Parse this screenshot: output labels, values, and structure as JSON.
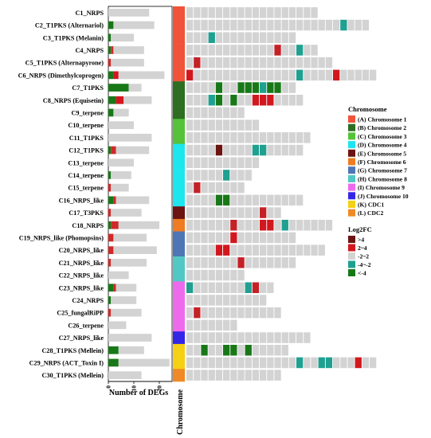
{
  "chart_data": {
    "type": "heatmap",
    "clusters": [
      {
        "label": "C1_NRPS",
        "chromosome": "A",
        "bar": {
          "up": 0,
          "up_mid": 0,
          "neutral": 16,
          "down_mid": 0,
          "down": 0
        },
        "cells": [
          0,
          0,
          0,
          0,
          0,
          0,
          0,
          0,
          0,
          0,
          0,
          0,
          0,
          0,
          0,
          0,
          0,
          0
        ]
      },
      {
        "label": "C2_T1PKS (Alternariol)",
        "chromosome": "A",
        "bar": {
          "up": 0,
          "up_mid": 0,
          "neutral": 16,
          "down_mid": 0,
          "down": 2
        },
        "cells": [
          0,
          0,
          0,
          0,
          0,
          0,
          0,
          0,
          0,
          0,
          0,
          0,
          0,
          0,
          0,
          0,
          0,
          0,
          0,
          0,
          0,
          -1,
          0,
          0,
          0
        ]
      },
      {
        "label": "C3_T1PKS (Melanin)",
        "chromosome": "A",
        "bar": {
          "up": 0,
          "up_mid": 0,
          "neutral": 9,
          "down_mid": 0,
          "down": 1
        },
        "cells": [
          0,
          0,
          0,
          -1,
          0,
          0,
          0,
          0,
          0,
          0,
          0,
          0,
          0,
          0,
          0
        ]
      },
      {
        "label": "C4_NRPS",
        "chromosome": "A",
        "bar": {
          "up": 0,
          "up_mid": 1,
          "neutral": 12,
          "down_mid": 0,
          "down": 1
        },
        "cells": [
          0,
          0,
          0,
          0,
          0,
          0,
          0,
          0,
          0,
          0,
          0,
          0,
          1,
          0,
          0,
          -1,
          0,
          0
        ]
      },
      {
        "label": "C5_T1PKS (Alternapyrone)",
        "chromosome": "A",
        "bar": {
          "up": 0,
          "up_mid": 1,
          "neutral": 13,
          "down_mid": 0,
          "down": 0
        },
        "cells": [
          0,
          1,
          0,
          0,
          0,
          0,
          0,
          0,
          0,
          0,
          0,
          0,
          0,
          0,
          0,
          0,
          0,
          0,
          0,
          0
        ]
      },
      {
        "label": "C6_NRPS (Dimethylcoprogen)",
        "chromosome": "A",
        "bar": {
          "up": 2,
          "up_mid": 0,
          "neutral": 18,
          "down_mid": 0,
          "down": 2
        },
        "cells": [
          2,
          0,
          0,
          0,
          0,
          0,
          0,
          0,
          0,
          0,
          0,
          0,
          0,
          0,
          0,
          -1,
          0,
          0,
          0,
          0,
          2,
          0,
          0,
          0,
          0,
          0
        ]
      },
      {
        "label": "C7_T1PKS",
        "chromosome": "B",
        "bar": {
          "up": 0,
          "up_mid": 0,
          "neutral": 5,
          "down_mid": 0,
          "down": 8
        },
        "cells": [
          0,
          0,
          0,
          0,
          -2,
          0,
          0,
          -2,
          -2,
          -2,
          -1,
          -2,
          -2,
          0,
          0
        ]
      },
      {
        "label": "C8_NRPS (Equisetin)",
        "chromosome": "B",
        "bar": {
          "up": 3,
          "up_mid": 0,
          "neutral": 11,
          "down_mid": 0,
          "down": 3
        },
        "cells": [
          0,
          0,
          0,
          -1,
          -2,
          0,
          -2,
          0,
          0,
          2,
          2,
          2,
          0,
          0,
          0,
          0
        ]
      },
      {
        "label": "C9_terpene",
        "chromosome": "B",
        "bar": {
          "up": 0,
          "up_mid": 0,
          "neutral": 6,
          "down_mid": 0,
          "down": 2
        },
        "cells": [
          0,
          0,
          0,
          0,
          0,
          0,
          0,
          0
        ]
      },
      {
        "label": "C10_terpene",
        "chromosome": "C",
        "bar": {
          "up": 0,
          "up_mid": 0,
          "neutral": 10,
          "down_mid": 0,
          "down": 0
        },
        "cells": [
          0,
          0,
          0,
          0,
          0,
          0,
          0,
          0,
          0,
          0
        ]
      },
      {
        "label": "C11_T1PKS",
        "chromosome": "C",
        "bar": {
          "up": 0,
          "up_mid": 0,
          "neutral": 17,
          "down_mid": 0,
          "down": 0
        },
        "cells": [
          0,
          0,
          0,
          0,
          0,
          0,
          0,
          0,
          0,
          0,
          0,
          0,
          0,
          0,
          0,
          0,
          0
        ]
      },
      {
        "label": "C12_T1PKS",
        "chromosome": "D",
        "bar": {
          "up": 0,
          "up_mid": 2,
          "neutral": 13,
          "down_mid": 0,
          "down": 1
        },
        "cells": [
          0,
          0,
          0,
          0,
          3,
          0,
          0,
          0,
          0,
          -1,
          -1,
          0,
          0,
          0,
          0,
          0
        ]
      },
      {
        "label": "C13_terpene",
        "chromosome": "D",
        "bar": {
          "up": 0,
          "up_mid": 0,
          "neutral": 10,
          "down_mid": 0,
          "down": 0
        },
        "cells": [
          0,
          0,
          0,
          0,
          0,
          0,
          0,
          0,
          0,
          0
        ]
      },
      {
        "label": "C14_terpene",
        "chromosome": "D",
        "bar": {
          "up": 0,
          "up_mid": 0,
          "neutral": 8,
          "down_mid": 0,
          "down": 1
        },
        "cells": [
          0,
          0,
          0,
          0,
          0,
          -1,
          0,
          0,
          0
        ]
      },
      {
        "label": "C15_terpene",
        "chromosome": "D",
        "bar": {
          "up": 0,
          "up_mid": 1,
          "neutral": 7,
          "down_mid": 0,
          "down": 0
        },
        "cells": [
          0,
          1,
          0,
          0,
          0,
          0,
          0,
          0
        ]
      },
      {
        "label": "C16_NRPS_like",
        "chromosome": "D",
        "bar": {
          "up": 0,
          "up_mid": 1,
          "neutral": 13,
          "down_mid": 0,
          "down": 2
        },
        "cells": [
          0,
          0,
          0,
          0,
          -2,
          -2,
          0,
          0,
          0,
          0,
          0,
          0,
          0,
          0,
          0,
          0
        ]
      },
      {
        "label": "C17_T3PKS",
        "chromosome": "E",
        "bar": {
          "up": 0,
          "up_mid": 1,
          "neutral": 12,
          "down_mid": 0,
          "down": 0
        },
        "cells": [
          0,
          0,
          0,
          0,
          0,
          0,
          0,
          0,
          0,
          0,
          1,
          0,
          0
        ]
      },
      {
        "label": "C18_NRPS",
        "chromosome": "F",
        "bar": {
          "up": 0,
          "up_mid": 3,
          "neutral": 16,
          "down_mid": 0,
          "down": 1
        },
        "cells": [
          0,
          0,
          0,
          0,
          0,
          0,
          1,
          0,
          0,
          0,
          2,
          2,
          0,
          -1,
          0,
          0,
          0,
          0,
          0,
          0
        ]
      },
      {
        "label": "C19_NRPS_like (Phomopsins)",
        "chromosome": "G",
        "bar": {
          "up": 0,
          "up_mid": 2,
          "neutral": 13,
          "down_mid": 0,
          "down": 0
        },
        "cells": [
          0,
          0,
          0,
          0,
          0,
          0,
          2,
          0,
          0,
          0,
          0,
          0,
          0,
          0,
          0
        ]
      },
      {
        "label": "C20_NRPS_like",
        "chromosome": "G",
        "bar": {
          "up": 0,
          "up_mid": 2,
          "neutral": 17,
          "down_mid": 0,
          "down": 0
        },
        "cells": [
          0,
          0,
          0,
          0,
          2,
          2,
          0,
          0,
          0,
          0,
          0,
          0,
          0,
          0,
          0,
          0,
          0,
          0,
          0
        ]
      },
      {
        "label": "C21_NRPS_like",
        "chromosome": "H",
        "bar": {
          "up": 0,
          "up_mid": 1,
          "neutral": 14,
          "down_mid": 0,
          "down": 0
        },
        "cells": [
          0,
          0,
          0,
          0,
          0,
          0,
          0,
          1,
          0,
          0,
          0,
          0,
          0,
          0,
          0
        ]
      },
      {
        "label": "C22_NRPS_like",
        "chromosome": "H",
        "bar": {
          "up": 0,
          "up_mid": 0,
          "neutral": 8,
          "down_mid": 0,
          "down": 0
        },
        "cells": [
          0,
          0,
          0,
          0,
          0,
          0,
          0,
          0
        ]
      },
      {
        "label": "C23_NRPS_like",
        "chromosome": "I",
        "bar": {
          "up": 0,
          "up_mid": 1,
          "neutral": 8,
          "down_mid": 0,
          "down": 2
        },
        "cells": [
          -1,
          0,
          0,
          0,
          0,
          0,
          0,
          0,
          -1,
          1,
          0,
          0
        ]
      },
      {
        "label": "C24_NRPS",
        "chromosome": "I",
        "bar": {
          "up": 0,
          "up_mid": 0,
          "neutral": 10,
          "down_mid": 0,
          "down": 1
        },
        "cells": [
          0,
          0,
          0,
          0,
          0,
          0,
          0,
          0,
          0,
          0,
          0
        ]
      },
      {
        "label": "C25_fungalRiPP",
        "chromosome": "I",
        "bar": {
          "up": 0,
          "up_mid": 1,
          "neutral": 12,
          "down_mid": 0,
          "down": 0
        },
        "cells": [
          0,
          1,
          0,
          0,
          0,
          0,
          0,
          0,
          0,
          0,
          0,
          0,
          0
        ]
      },
      {
        "label": "C26_terpene",
        "chromosome": "I",
        "bar": {
          "up": 0,
          "up_mid": 0,
          "neutral": 7,
          "down_mid": 0,
          "down": 0
        },
        "cells": [
          0,
          0,
          0,
          0,
          0,
          0,
          0
        ]
      },
      {
        "label": "C27_NRPS_like",
        "chromosome": "J",
        "bar": {
          "up": 0,
          "up_mid": 0,
          "neutral": 17,
          "down_mid": 0,
          "down": 0
        },
        "cells": [
          0,
          0,
          0,
          0,
          0,
          0,
          0,
          0,
          0,
          0,
          0,
          0,
          0,
          0,
          0,
          0,
          0
        ]
      },
      {
        "label": "C28_T1PKS (Mellein)",
        "chromosome": "K",
        "bar": {
          "up": 0,
          "up_mid": 0,
          "neutral": 10,
          "down_mid": 0,
          "down": 4
        },
        "cells": [
          0,
          0,
          -2,
          0,
          0,
          -2,
          -2,
          0,
          -2,
          0,
          0,
          0,
          0,
          0
        ]
      },
      {
        "label": "C29_NRPS (ACT_Toxin I)",
        "chromosome": "K",
        "bar": {
          "up": 0,
          "up_mid": 0,
          "neutral": 20,
          "down_mid": 0,
          "down": 4
        },
        "cells": [
          0,
          0,
          0,
          0,
          0,
          0,
          0,
          0,
          0,
          0,
          0,
          0,
          0,
          0,
          0,
          -1,
          0,
          0,
          -1,
          -1,
          0,
          0,
          0,
          2,
          0,
          0
        ]
      },
      {
        "label": "C30_T1PKS (Mellein)",
        "chromosome": "L",
        "bar": {
          "up": 0,
          "up_mid": 0,
          "neutral": 13,
          "down_mid": 0,
          "down": 0
        },
        "cells": [
          0,
          0,
          0,
          0,
          0,
          0,
          0,
          0,
          0,
          0,
          0,
          0,
          0
        ]
      }
    ],
    "x_axis": {
      "label": "Number of DEGs",
      "ticks": [
        "0",
        "10",
        "20"
      ],
      "range": [
        0,
        25
      ]
    },
    "chromosome_axis_label": "Chromosome",
    "legend_chromosome": {
      "title": "Chromosome",
      "entries": [
        {
          "key": "A",
          "label": "(A) Chromosome 1",
          "color": "#f0533a"
        },
        {
          "key": "B",
          "label": "(B) Chromosome 2",
          "color": "#2d6e22"
        },
        {
          "key": "C",
          "label": "(C) Chromosome 3",
          "color": "#55c23a"
        },
        {
          "key": "D",
          "label": "(D) Chromosome 4",
          "color": "#1ee6ef"
        },
        {
          "key": "E",
          "label": "(E) Chromosome 5",
          "color": "#6b1411"
        },
        {
          "key": "F",
          "label": "(F) Chromosome 6",
          "color": "#ef7b22"
        },
        {
          "key": "G",
          "label": "(G) Chromosome 7",
          "color": "#4e76b4"
        },
        {
          "key": "H",
          "label": "(H) Chromosome 8",
          "color": "#52c8c4"
        },
        {
          "key": "I",
          "label": "(I) Chromosome 9",
          "color": "#ee6aec"
        },
        {
          "key": "J",
          "label": "(J) Chromosome 10",
          "color": "#3426e6"
        },
        {
          "key": "K",
          "label": "(K) CDC1",
          "color": "#f5d014"
        },
        {
          "key": "L",
          "label": "(L) CDC2",
          "color": "#ef8a26"
        }
      ]
    },
    "legend_log2fc": {
      "title": "Log2FC",
      "entries": [
        {
          "key": 3,
          "label": ">4",
          "color": "#6b1411"
        },
        {
          "key": 2,
          "label": "2~4",
          "color": "#d2171f"
        },
        {
          "key": 0,
          "label": "-2~2",
          "color": "#d3d3d3"
        },
        {
          "key": -1,
          "label": "-4~-2",
          "color": "#1fa090"
        },
        {
          "key": -2,
          "label": "<-4",
          "color": "#187818"
        }
      ]
    },
    "bar_colors": {
      "up": "#d2171f",
      "up_mid": "#cf2a2a",
      "neutral": "#d3d3d3",
      "down_mid": "#1fa090",
      "down": "#187818"
    },
    "cell_colors": {
      "3": "#6b1411",
      "2": "#d2171f",
      "1": "#c42127",
      "0": "#d3d3d3",
      "-1": "#1fa090",
      "-2": "#187818"
    }
  }
}
